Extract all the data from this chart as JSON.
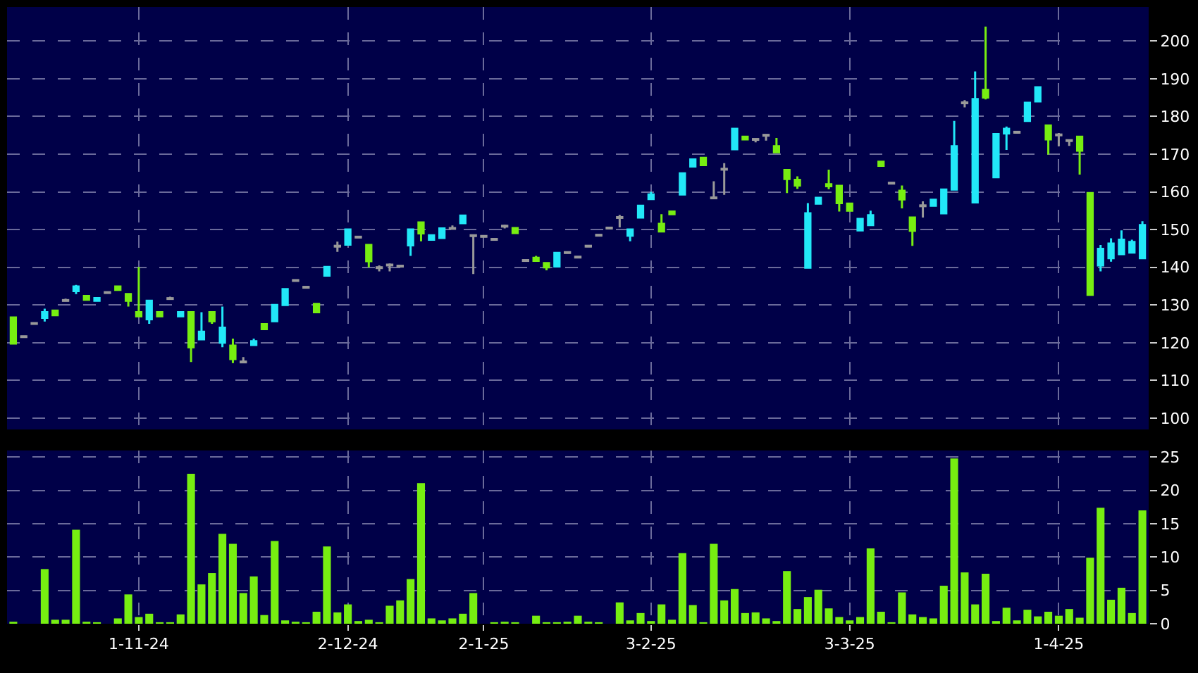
{
  "chart_data": [
    {
      "type": "candlestick",
      "tick_labels": "y",
      "grid": true,
      "ylim": [
        97,
        209
      ],
      "yticks": [
        100,
        110,
        120,
        130,
        140,
        150,
        160,
        170,
        180,
        190,
        200
      ],
      "categories": [
        null,
        null,
        null,
        null,
        null,
        null,
        null,
        null,
        null,
        null,
        null,
        null,
        null,
        null,
        null,
        null,
        null,
        null,
        null,
        null,
        null,
        null,
        null,
        null,
        null,
        null,
        null,
        null,
        null,
        null,
        null,
        null,
        null,
        null,
        null,
        null,
        null,
        null,
        null,
        null,
        null,
        null,
        null,
        null,
        null,
        null,
        null,
        null,
        null,
        null,
        null,
        null,
        null,
        null,
        null,
        null,
        null,
        null,
        null,
        null,
        null,
        null,
        null,
        null,
        null,
        null,
        null,
        null,
        null,
        null,
        null,
        null,
        null,
        null,
        null,
        null,
        null,
        null,
        null,
        null,
        null,
        null,
        null,
        null,
        null,
        null,
        null,
        null,
        null,
        null,
        null,
        null,
        null,
        null,
        null,
        null,
        null,
        null,
        null,
        null,
        null,
        null,
        null,
        null,
        null,
        null,
        null,
        null,
        null
      ],
      "ohlc": [
        [
          126.7,
          126.7,
          119.8,
          119.8
        ],
        [
          121.6,
          121.6,
          121.6,
          121.6
        ],
        [
          125.1,
          125.1,
          125.1,
          125.1
        ],
        [
          126.6,
          129.0,
          125.6,
          128.1
        ],
        [
          128.5,
          128.5,
          127.3,
          127.3
        ],
        [
          131.2,
          131.7,
          131.2,
          131.2
        ],
        [
          133.7,
          135.3,
          132.9,
          134.9
        ],
        [
          132.4,
          132.4,
          131.4,
          131.4
        ],
        [
          131.1,
          131.8,
          131.1,
          131.8
        ],
        [
          133.3,
          133.3,
          133.3,
          133.3
        ],
        [
          134.9,
          134.9,
          134.0,
          134.0
        ],
        [
          132.9,
          132.9,
          129.6,
          131.1
        ],
        [
          128.1,
          140.1,
          127.0,
          127.0
        ],
        [
          126.2,
          131.1,
          125.0,
          131.1
        ],
        [
          128.1,
          128.1,
          127.0,
          127.0
        ],
        [
          131.7,
          132.2,
          131.7,
          131.7
        ],
        [
          127.0,
          128.1,
          127.0,
          128.1
        ],
        [
          128.1,
          128.1,
          114.9,
          118.8
        ],
        [
          120.9,
          128.1,
          120.9,
          122.9
        ],
        [
          128.1,
          128.1,
          125.0,
          125.7
        ],
        [
          120.0,
          129.6,
          118.8,
          124.0
        ],
        [
          119.2,
          121.1,
          114.6,
          115.7
        ],
        [
          114.9,
          116.2,
          114.9,
          114.9
        ],
        [
          119.4,
          121.1,
          119.4,
          120.4
        ],
        [
          124.9,
          124.9,
          123.6,
          123.6
        ],
        [
          125.7,
          130.0,
          125.7,
          130.0
        ],
        [
          130.0,
          134.2,
          130.0,
          134.2
        ],
        [
          136.5,
          136.5,
          136.5,
          136.5
        ],
        [
          134.7,
          134.7,
          134.7,
          134.7
        ],
        [
          130.3,
          130.3,
          128.1,
          128.1
        ],
        [
          137.8,
          140.1,
          137.8,
          140.1
        ],
        [
          145.6,
          146.8,
          144.1,
          145.6
        ],
        [
          146.0,
          150.0,
          146.0,
          150.0
        ],
        [
          148.0,
          148.0,
          148.0,
          148.0
        ],
        [
          145.9,
          145.9,
          140.0,
          141.6
        ],
        [
          139.9,
          140.5,
          138.9,
          139.9
        ],
        [
          140.6,
          141.0,
          138.9,
          140.6
        ],
        [
          140.3,
          140.3,
          140.3,
          140.3
        ],
        [
          145.8,
          150.0,
          143.0,
          150.0
        ],
        [
          151.9,
          151.9,
          146.9,
          149.0
        ],
        [
          147.3,
          148.5,
          147.3,
          148.5
        ],
        [
          147.8,
          150.3,
          147.8,
          150.3
        ],
        [
          150.3,
          151.1,
          150.3,
          150.3
        ],
        [
          151.7,
          153.7,
          151.7,
          153.7
        ],
        [
          148.4,
          148.4,
          138.2,
          148.4
        ],
        [
          148.2,
          148.2,
          148.2,
          148.2
        ],
        [
          147.4,
          147.4,
          147.4,
          147.4
        ],
        [
          150.9,
          151.3,
          150.3,
          150.9
        ],
        [
          150.4,
          150.4,
          149.1,
          149.1
        ],
        [
          141.8,
          141.8,
          141.8,
          141.8
        ],
        [
          142.5,
          143.0,
          141.7,
          141.7
        ],
        [
          141.1,
          141.1,
          139.2,
          140.0
        ],
        [
          140.2,
          143.8,
          140.2,
          143.8
        ],
        [
          143.9,
          143.9,
          143.9,
          143.9
        ],
        [
          142.7,
          142.7,
          142.7,
          142.7
        ],
        [
          145.6,
          145.6,
          145.6,
          145.6
        ],
        [
          148.5,
          148.5,
          148.5,
          148.5
        ],
        [
          150.4,
          150.4,
          150.4,
          150.4
        ],
        [
          153.2,
          153.9,
          150.6,
          153.2
        ],
        [
          148.4,
          150.0,
          146.9,
          150.0
        ],
        [
          153.2,
          156.3,
          153.2,
          156.3
        ],
        [
          158.1,
          160.0,
          158.1,
          159.3
        ],
        [
          151.5,
          154.1,
          149.5,
          149.5
        ],
        [
          154.8,
          154.8,
          154.1,
          154.1
        ],
        [
          159.3,
          164.9,
          159.3,
          164.9
        ],
        [
          166.7,
          168.6,
          166.7,
          168.6
        ],
        [
          169.0,
          169.0,
          167.1,
          167.1
        ],
        [
          158.4,
          162.8,
          158.4,
          158.4
        ],
        [
          166.0,
          167.6,
          159.2,
          166.0
        ],
        [
          171.3,
          176.7,
          171.3,
          176.7
        ],
        [
          174.6,
          174.6,
          173.9,
          173.9
        ],
        [
          173.9,
          173.9,
          173.1,
          173.9
        ],
        [
          175.0,
          175.0,
          173.6,
          175.0
        ],
        [
          172.1,
          174.3,
          170.5,
          170.5
        ],
        [
          165.8,
          165.8,
          159.7,
          163.4
        ],
        [
          163.2,
          164.1,
          160.8,
          161.7
        ],
        [
          139.9,
          157.0,
          139.9,
          154.3
        ],
        [
          156.9,
          158.4,
          156.9,
          158.4
        ],
        [
          162.0,
          165.9,
          160.7,
          161.5
        ],
        [
          161.6,
          161.6,
          154.8,
          157.0
        ],
        [
          156.9,
          156.9,
          155.0,
          155.0
        ],
        [
          149.8,
          152.8,
          149.8,
          152.8
        ],
        [
          151.2,
          155.0,
          151.2,
          153.8
        ],
        [
          168.0,
          168.0,
          166.9,
          166.9
        ],
        [
          162.3,
          162.3,
          162.3,
          162.3
        ],
        [
          160.3,
          161.7,
          155.6,
          158.0
        ],
        [
          153.2,
          153.2,
          145.7,
          149.7
        ],
        [
          156.3,
          157.5,
          153.2,
          156.3
        ],
        [
          156.3,
          157.9,
          156.3,
          157.9
        ],
        [
          154.3,
          160.6,
          154.3,
          160.6
        ],
        [
          160.6,
          178.8,
          160.6,
          172.1
        ],
        [
          183.6,
          184.3,
          182.4,
          183.6
        ],
        [
          157.2,
          191.9,
          157.2,
          184.6
        ],
        [
          187.0,
          203.8,
          184.5,
          185.0
        ],
        [
          163.9,
          175.3,
          163.9,
          175.3
        ],
        [
          175.5,
          177.3,
          171.1,
          176.7
        ],
        [
          175.8,
          175.8,
          175.8,
          175.8
        ],
        [
          178.8,
          183.6,
          178.8,
          183.6
        ],
        [
          184.0,
          187.7,
          184.0,
          187.7
        ],
        [
          177.6,
          177.6,
          169.9,
          173.9
        ],
        [
          175.1,
          175.6,
          172.1,
          175.1
        ],
        [
          173.6,
          173.6,
          172.2,
          173.6
        ],
        [
          174.6,
          174.6,
          164.6,
          170.9
        ],
        [
          159.7,
          159.7,
          132.7,
          132.7
        ],
        [
          140.5,
          145.9,
          138.9,
          144.9
        ],
        [
          142.4,
          147.7,
          141.5,
          146.3
        ],
        [
          143.5,
          149.8,
          143.5,
          147.3
        ],
        [
          143.9,
          147.3,
          143.9,
          146.7
        ],
        [
          142.4,
          152.2,
          142.4,
          151.2
        ]
      ],
      "colors": [
        "#77ee11",
        "#999999",
        "#999999",
        "#22e8f8",
        "#77ee11",
        "#999999",
        "#22e8f8",
        "#77ee11",
        "#22e8f8",
        "#999999",
        "#77ee11",
        "#77ee11",
        "#77ee11",
        "#22e8f8",
        "#77ee11",
        "#999999",
        "#22e8f8",
        "#77ee11",
        "#22e8f8",
        "#77ee11",
        "#22e8f8",
        "#77ee11",
        "#999999",
        "#22e8f8",
        "#77ee11",
        "#22e8f8",
        "#22e8f8",
        "#999999",
        "#999999",
        "#77ee11",
        "#22e8f8",
        "#999999",
        "#22e8f8",
        "#999999",
        "#77ee11",
        "#999999",
        "#999999",
        "#999999",
        "#22e8f8",
        "#77ee11",
        "#22e8f8",
        "#22e8f8",
        "#999999",
        "#22e8f8",
        "#999999",
        "#999999",
        "#999999",
        "#999999",
        "#77ee11",
        "#999999",
        "#77ee11",
        "#77ee11",
        "#22e8f8",
        "#999999",
        "#999999",
        "#999999",
        "#999999",
        "#999999",
        "#999999",
        "#22e8f8",
        "#22e8f8",
        "#22e8f8",
        "#77ee11",
        "#77ee11",
        "#22e8f8",
        "#22e8f8",
        "#77ee11",
        "#999999",
        "#999999",
        "#22e8f8",
        "#77ee11",
        "#999999",
        "#999999",
        "#77ee11",
        "#77ee11",
        "#77ee11",
        "#22e8f8",
        "#22e8f8",
        "#77ee11",
        "#77ee11",
        "#77ee11",
        "#22e8f8",
        "#22e8f8",
        "#77ee11",
        "#999999",
        "#77ee11",
        "#77ee11",
        "#999999",
        "#22e8f8",
        "#22e8f8",
        "#22e8f8",
        "#999999",
        "#22e8f8",
        "#77ee11",
        "#22e8f8",
        "#22e8f8",
        "#999999",
        "#22e8f8",
        "#22e8f8",
        "#77ee11",
        "#999999",
        "#999999",
        "#77ee11",
        "#77ee11",
        "#22e8f8",
        "#22e8f8",
        "#22e8f8",
        "#22e8f8",
        "#22e8f8"
      ]
    },
    {
      "type": "bar",
      "grid": true,
      "ylim": [
        0,
        26
      ],
      "yticks": [
        0,
        5,
        10,
        15,
        20,
        25
      ],
      "color": "#77ee11",
      "categories": [
        null,
        null,
        null,
        null,
        null,
        null,
        null,
        null,
        null,
        null,
        null,
        null,
        "1-11-24",
        null,
        null,
        null,
        null,
        null,
        null,
        null,
        null,
        null,
        null,
        null,
        null,
        null,
        null,
        null,
        null,
        null,
        null,
        null,
        "2-12-24",
        null,
        null,
        null,
        null,
        null,
        null,
        null,
        null,
        null,
        null,
        null,
        null,
        "2-1-25",
        null,
        null,
        null,
        null,
        null,
        null,
        null,
        null,
        null,
        null,
        null,
        null,
        null,
        null,
        null,
        "3-2-25",
        null,
        null,
        null,
        null,
        null,
        null,
        null,
        null,
        null,
        null,
        null,
        null,
        null,
        null,
        null,
        null,
        null,
        null,
        "3-3-25",
        null,
        null,
        null,
        null,
        null,
        null,
        null,
        null,
        null,
        null,
        null,
        null,
        null,
        null,
        null,
        null,
        null,
        null,
        null,
        "1-4-25",
        null,
        null,
        null,
        null,
        null,
        null,
        null,
        null
      ],
      "values": [
        0.3,
        0,
        0,
        8.2,
        0.6,
        0.6,
        14.1,
        0.3,
        0.2,
        0,
        0.8,
        4.4,
        1.0,
        1.5,
        0.1,
        0.2,
        1.4,
        22.5,
        5.9,
        7.6,
        13.5,
        12.0,
        4.6,
        7.1,
        1.3,
        12.4,
        0.5,
        0.3,
        0.2,
        1.8,
        11.6,
        1.7,
        2.9,
        0.4,
        0.6,
        0.1,
        2.7,
        3.5,
        6.7,
        21.1,
        0.8,
        0.5,
        0.8,
        1.5,
        4.6,
        0,
        0.1,
        0.3,
        0.2,
        0,
        1.2,
        0.1,
        0.1,
        0.3,
        1.2,
        0.3,
        0.1,
        0,
        3.2,
        0.5,
        1.6,
        0.4,
        2.9,
        0.6,
        10.6,
        2.8,
        0.1,
        12.0,
        3.5,
        5.2,
        1.6,
        1.7,
        0.8,
        0.4,
        7.9,
        2.2,
        4.0,
        5.1,
        2.3,
        1.0,
        0.5,
        1.0,
        11.3,
        1.8,
        0.1,
        4.7,
        1.4,
        1.0,
        0.8,
        5.7,
        24.8,
        7.7,
        2.9,
        7.5,
        0.4,
        2.4,
        0.5,
        2.1,
        1.1,
        1.8,
        1.2,
        2.2,
        0.9,
        9.9,
        17.4,
        3.6,
        5.4,
        1.6,
        17.0
      ]
    }
  ]
}
